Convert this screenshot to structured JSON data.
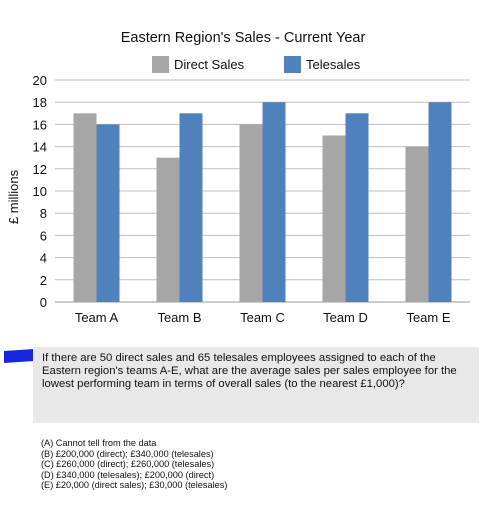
{
  "chart_data": {
    "type": "bar",
    "title": "Eastern Region's Sales - Current Year",
    "ylabel": "£ millions",
    "xlabel": "",
    "categories": [
      "Team A",
      "Team B",
      "Team C",
      "Team D",
      "Team E"
    ],
    "series": [
      {
        "name": "Direct Sales",
        "values": [
          17,
          13,
          16,
          15,
          14
        ],
        "color": "#a6a6a6"
      },
      {
        "name": "Telesales",
        "values": [
          16,
          17,
          18,
          17,
          18
        ],
        "color": "#4f81bd"
      }
    ],
    "ylim": [
      0,
      20
    ],
    "yticks": [
      "0",
      "2",
      "4",
      "6",
      "8",
      "10",
      "12",
      "14",
      "16",
      "18",
      "20"
    ],
    "grid": true,
    "legend_position": "top"
  },
  "question": {
    "text": "If there are 50 direct sales and 65 telesales employees assigned to each of the Eastern region's teams A-E, what are the average sales per sales employee for the lowest performing team in terms of overall sales (to the nearest £1,000)?"
  },
  "options": [
    "(A) Cannot tell from the data",
    "(B) £200,000 (direct); £340,000 (telesales)",
    "(C) £260,000 (direct); £260,000 (telesales)",
    "(D) £340,000 (telesales); £200,000 (direct)",
    "(E) £20,000 (direct sales); £30,000 (telesales)"
  ],
  "colors": {
    "highlight_marker": "#1525e0",
    "question_background": "#e8e8e8"
  }
}
